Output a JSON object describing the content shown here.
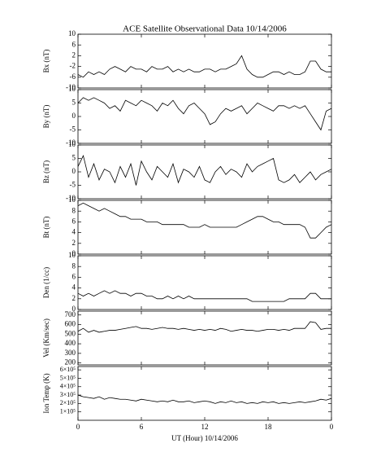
{
  "title": "ACE Satellite Observational Data   10/14/2006",
  "xlabel": "UT (Hour)  10/14/2006",
  "chart_data": [
    {
      "type": "line",
      "ylabel": "Bx (nT)",
      "color": "#000000",
      "x": [
        0,
        0.5,
        1,
        1.5,
        2,
        2.5,
        3,
        3.5,
        4,
        4.5,
        5,
        5.5,
        6,
        6.5,
        7,
        7.5,
        8,
        8.5,
        9,
        9.5,
        10,
        10.5,
        11,
        11.5,
        12,
        12.5,
        13,
        13.5,
        14,
        14.5,
        15,
        15.5,
        16,
        16.5,
        17,
        17.5,
        18,
        18.5,
        19,
        19.5,
        20,
        20.5,
        21,
        21.5,
        22,
        22.5,
        23,
        23.5,
        24
      ],
      "values": [
        -5,
        -6,
        -4,
        -5,
        -4,
        -5,
        -3,
        -2,
        -3,
        -4,
        -2,
        -3,
        -3,
        -4,
        -2,
        -3,
        -3,
        -2,
        -4,
        -3,
        -4,
        -3,
        -4,
        -4,
        -3,
        -3,
        -4,
        -3,
        -3,
        -2,
        -1,
        2,
        -3,
        -5,
        -6,
        -6,
        -5,
        -4,
        -4,
        -5,
        -4,
        -5,
        -5,
        -4,
        0,
        0,
        -3,
        -4,
        -4
      ],
      "xlim": [
        0,
        24
      ],
      "xticks": [
        0,
        6,
        12,
        18,
        {
          "value": 24,
          "label": "0"
        }
      ],
      "ylim": [
        -10,
        10
      ],
      "yticks": [
        -10,
        -6,
        -2,
        2,
        6,
        10
      ]
    },
    {
      "type": "line",
      "ylabel": "By (nT)",
      "color": "#000000",
      "x": [
        0,
        0.5,
        1,
        1.5,
        2,
        2.5,
        3,
        3.5,
        4,
        4.5,
        5,
        5.5,
        6,
        6.5,
        7,
        7.5,
        8,
        8.5,
        9,
        9.5,
        10,
        10.5,
        11,
        11.5,
        12,
        12.5,
        13,
        13.5,
        14,
        14.5,
        15,
        15.5,
        16,
        16.5,
        17,
        17.5,
        18,
        18.5,
        19,
        19.5,
        20,
        20.5,
        21,
        21.5,
        22,
        22.5,
        23,
        23.5,
        24
      ],
      "values": [
        5,
        7,
        6,
        7,
        6,
        5,
        3,
        4,
        2,
        6,
        5,
        4,
        6,
        5,
        4,
        2,
        5,
        4,
        6,
        3,
        1,
        4,
        5,
        3,
        1,
        -3,
        -2,
        1,
        3,
        2,
        3,
        4,
        1,
        3,
        5,
        4,
        3,
        2,
        4,
        4,
        3,
        4,
        3,
        4,
        1,
        -2,
        -5,
        2,
        3
      ],
      "xlim": [
        0,
        24
      ],
      "xticks": [
        0,
        6,
        12,
        18,
        {
          "value": 24,
          "label": "0"
        }
      ],
      "ylim": [
        -10,
        10
      ],
      "yticks": [
        -10,
        -5,
        0,
        5,
        10
      ]
    },
    {
      "type": "line",
      "ylabel": "Bz (nT)",
      "color": "#000000",
      "x": [
        0,
        0.5,
        1,
        1.5,
        2,
        2.5,
        3,
        3.5,
        4,
        4.5,
        5,
        5.5,
        6,
        6.5,
        7,
        7.5,
        8,
        8.5,
        9,
        9.5,
        10,
        10.5,
        11,
        11.5,
        12,
        12.5,
        13,
        13.5,
        14,
        14.5,
        15,
        15.5,
        16,
        16.5,
        17,
        17.5,
        18,
        18.5,
        19,
        19.5,
        20,
        20.5,
        21,
        21.5,
        22,
        22.5,
        23,
        23.5,
        24
      ],
      "values": [
        2,
        6,
        -2,
        3,
        -3,
        1,
        0,
        -4,
        2,
        -2,
        3,
        -5,
        4,
        0,
        -3,
        2,
        0,
        -2,
        3,
        -4,
        1,
        0,
        -2,
        2,
        -3,
        -4,
        0,
        2,
        -1,
        1,
        0,
        -2,
        3,
        0,
        2,
        3,
        4,
        5,
        -3,
        -4,
        -3,
        -1,
        -4,
        -2,
        0,
        -3,
        -1,
        0,
        1
      ],
      "xlim": [
        0,
        24
      ],
      "xticks": [
        0,
        6,
        12,
        18,
        {
          "value": 24,
          "label": "0"
        }
      ],
      "ylim": [
        -10,
        10
      ],
      "yticks": [
        -10,
        -5,
        0,
        5,
        10
      ]
    },
    {
      "type": "line",
      "ylabel": "Bt (nT)",
      "color": "#000000",
      "x": [
        0,
        0.5,
        1,
        1.5,
        2,
        2.5,
        3,
        3.5,
        4,
        4.5,
        5,
        5.5,
        6,
        6.5,
        7,
        7.5,
        8,
        8.5,
        9,
        9.5,
        10,
        10.5,
        11,
        11.5,
        12,
        12.5,
        13,
        13.5,
        14,
        14.5,
        15,
        15.5,
        16,
        16.5,
        17,
        17.5,
        18,
        18.5,
        19,
        19.5,
        20,
        20.5,
        21,
        21.5,
        22,
        22.5,
        23,
        23.5,
        24
      ],
      "values": [
        9,
        9.5,
        9,
        8.5,
        8,
        8.5,
        8,
        7.5,
        7,
        7,
        6.5,
        6.5,
        6.5,
        6,
        6,
        6,
        5.5,
        5.5,
        5.5,
        5.5,
        5.5,
        5,
        5,
        5,
        5.5,
        5,
        5,
        5,
        5,
        5,
        5,
        5.5,
        6,
        6.5,
        7,
        7,
        6.5,
        6,
        6,
        5.5,
        5.5,
        5.5,
        5.5,
        5,
        3,
        3,
        4,
        5,
        5.5
      ],
      "xlim": [
        0,
        24
      ],
      "xticks": [
        0,
        6,
        12,
        18,
        {
          "value": 24,
          "label": "0"
        }
      ],
      "ylim": [
        0,
        10
      ],
      "yticks": [
        0,
        2,
        4,
        6,
        8,
        10
      ]
    },
    {
      "type": "line",
      "ylabel": "Den (1/cc)",
      "color": "#000000",
      "x": [
        0,
        0.5,
        1,
        1.5,
        2,
        2.5,
        3,
        3.5,
        4,
        4.5,
        5,
        5.5,
        6,
        6.5,
        7,
        7.5,
        8,
        8.5,
        9,
        9.5,
        10,
        10.5,
        11,
        11.5,
        12,
        12.5,
        13,
        13.5,
        14,
        14.5,
        15,
        15.5,
        16,
        16.5,
        17,
        17.5,
        18,
        18.5,
        19,
        19.5,
        20,
        20.5,
        21,
        21.5,
        22,
        22.5,
        23,
        23.5,
        24
      ],
      "values": [
        3,
        2.5,
        3,
        2.5,
        3,
        3.5,
        3,
        3.5,
        3,
        3,
        2.5,
        3,
        3,
        2.5,
        2.5,
        2,
        2,
        2.5,
        2,
        2.5,
        2,
        2.5,
        2,
        2,
        2,
        2,
        2,
        2,
        2,
        2,
        2,
        2,
        2,
        1.5,
        1.5,
        1.5,
        1.5,
        1.5,
        1.5,
        1.5,
        2,
        2,
        2,
        2,
        3,
        3,
        2,
        2,
        2
      ],
      "xlim": [
        0,
        24
      ],
      "xticks": [
        0,
        6,
        12,
        18,
        {
          "value": 24,
          "label": "0"
        }
      ],
      "ylim": [
        0,
        10
      ],
      "yticks": [
        0,
        2,
        4,
        6,
        8,
        10
      ]
    },
    {
      "type": "line",
      "ylabel": "Vel (Km/sec)",
      "color": "#000000",
      "x": [
        0,
        0.5,
        1,
        1.5,
        2,
        2.5,
        3,
        3.5,
        4,
        4.5,
        5,
        5.5,
        6,
        6.5,
        7,
        7.5,
        8,
        8.5,
        9,
        9.5,
        10,
        10.5,
        11,
        11.5,
        12,
        12.5,
        13,
        13.5,
        14,
        14.5,
        15,
        15.5,
        16,
        16.5,
        17,
        17.5,
        18,
        18.5,
        19,
        19.5,
        20,
        20.5,
        21,
        21.5,
        22,
        22.5,
        23,
        23.5,
        24
      ],
      "values": [
        530,
        560,
        520,
        540,
        520,
        530,
        540,
        540,
        550,
        560,
        570,
        580,
        560,
        560,
        550,
        560,
        570,
        560,
        560,
        550,
        560,
        550,
        540,
        550,
        540,
        550,
        540,
        560,
        550,
        530,
        540,
        550,
        540,
        540,
        530,
        540,
        550,
        550,
        540,
        550,
        540,
        560,
        560,
        560,
        630,
        620,
        550,
        560,
        560
      ],
      "xlim": [
        0,
        24
      ],
      "xticks": [
        0,
        6,
        12,
        18,
        {
          "value": 24,
          "label": "0"
        }
      ],
      "ylim": [
        180,
        740
      ],
      "yticks": [
        200,
        300,
        400,
        500,
        600,
        700
      ]
    },
    {
      "type": "line",
      "ylabel": "Ion Temp (K)",
      "color": "#000000",
      "x": [
        0,
        0.5,
        1,
        1.5,
        2,
        2.5,
        3,
        3.5,
        4,
        4.5,
        5,
        5.5,
        6,
        6.5,
        7,
        7.5,
        8,
        8.5,
        9,
        9.5,
        10,
        10.5,
        11,
        11.5,
        12,
        12.5,
        13,
        13.5,
        14,
        14.5,
        15,
        15.5,
        16,
        16.5,
        17,
        17.5,
        18,
        18.5,
        19,
        19.5,
        20,
        20.5,
        21,
        21.5,
        22,
        22.5,
        23,
        23.5,
        24
      ],
      "values": [
        300000,
        280000,
        270000,
        260000,
        280000,
        250000,
        270000,
        260000,
        250000,
        250000,
        240000,
        230000,
        250000,
        240000,
        230000,
        220000,
        230000,
        220000,
        240000,
        220000,
        220000,
        230000,
        210000,
        220000,
        230000,
        220000,
        200000,
        220000,
        210000,
        230000,
        210000,
        220000,
        200000,
        210000,
        200000,
        220000,
        210000,
        220000,
        200000,
        210000,
        200000,
        210000,
        220000,
        210000,
        220000,
        230000,
        250000,
        240000,
        260000
      ],
      "xlim": [
        0,
        24
      ],
      "xticks": [
        0,
        6,
        12,
        18,
        {
          "value": 24,
          "label": "0"
        }
      ],
      "ylim": [
        0,
        640000
      ],
      "yticks": [
        {
          "value": 100000,
          "label": "1×10⁵"
        },
        {
          "value": 200000,
          "label": "2×10⁵"
        },
        {
          "value": 300000,
          "label": "3×10⁵"
        },
        {
          "value": 400000,
          "label": "4×10⁵"
        },
        {
          "value": 500000,
          "label": "5×10⁵"
        },
        {
          "value": 600000,
          "label": "6×10⁵"
        }
      ]
    }
  ]
}
